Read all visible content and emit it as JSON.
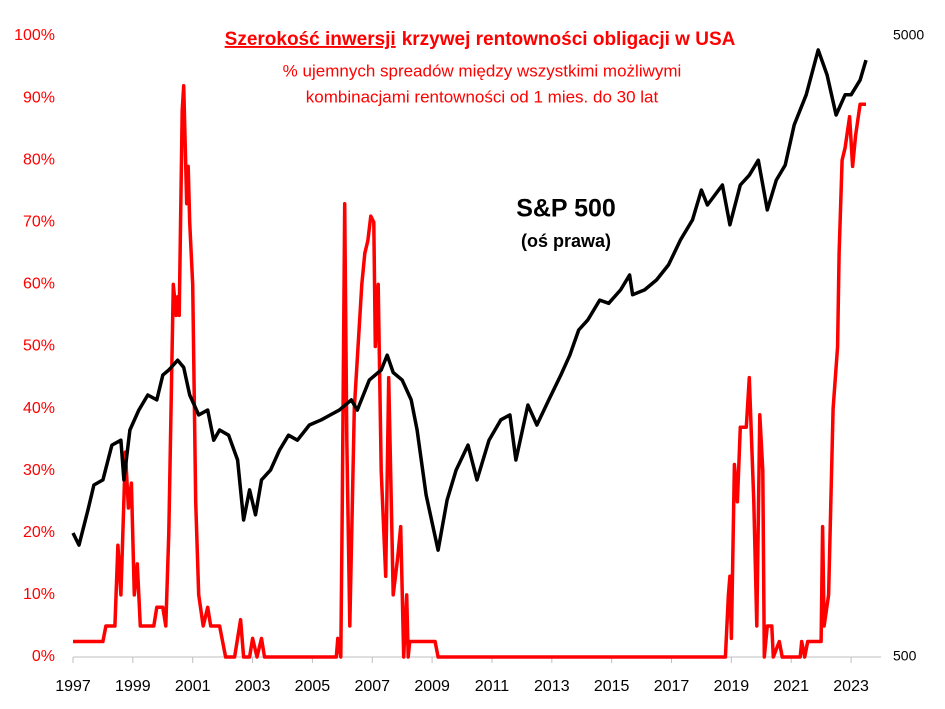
{
  "chart_data": {
    "type": "line",
    "title": {
      "underlined": "Szerokość inwersji",
      "rest": "krzywej rentowności obligacji w USA"
    },
    "subtitle": [
      "% ujemnych spreadów między wszystkimi możliwymi",
      "kombinacjami rentowności od 1 mies. do 30 lat"
    ],
    "annotation": [
      "S&P 500",
      "(oś prawa)"
    ],
    "xlim": [
      1997,
      2024
    ],
    "xticks": [
      1997,
      1999,
      2001,
      2003,
      2005,
      2007,
      2009,
      2011,
      2013,
      2015,
      2017,
      2019,
      2021,
      2023
    ],
    "ylim": [
      0,
      100
    ],
    "yticks": [
      {
        "value": 0,
        "label": "0%"
      },
      {
        "value": 10,
        "label": "10%"
      },
      {
        "value": 20,
        "label": "20%"
      },
      {
        "value": 30,
        "label": "30%"
      },
      {
        "value": 40,
        "label": "40%"
      },
      {
        "value": 50,
        "label": "50%"
      },
      {
        "value": 60,
        "label": "60%"
      },
      {
        "value": 70,
        "label": "70%"
      },
      {
        "value": 80,
        "label": "80%"
      },
      {
        "value": 90,
        "label": "90%"
      },
      {
        "value": 100,
        "label": "100%"
      }
    ],
    "y2lim": [
      500,
      5000
    ],
    "y2ticks": [
      500,
      5000
    ],
    "y2scale": "log",
    "series": [
      {
        "color": "#ff0000",
        "x": [
          1997.0,
          1998.0,
          1998.1,
          1998.4,
          1998.5,
          1998.6,
          1998.75,
          1998.85,
          1998.95,
          1999.05,
          1999.15,
          1999.25,
          1999.7,
          1999.8,
          2000.0,
          2000.1,
          2000.2,
          2000.35,
          2000.45,
          2000.5,
          2000.55,
          2000.65,
          2000.7,
          2000.8,
          2000.85,
          2000.9,
          2001.0,
          2001.1,
          2001.2,
          2001.35,
          2001.5,
          2001.6,
          2001.9,
          2002.1,
          2002.4,
          2002.5,
          2002.6,
          2002.7,
          2002.9,
          2003.0,
          2003.15,
          2003.3,
          2003.4,
          2005.8,
          2005.85,
          2005.95,
          2006.0,
          2006.08,
          2006.15,
          2006.25,
          2006.4,
          2006.55,
          2006.65,
          2006.75,
          2006.85,
          2006.95,
          2007.05,
          2007.1,
          2007.2,
          2007.3,
          2007.45,
          2007.55,
          2007.7,
          2007.85,
          2007.95,
          2008.05,
          2008.15,
          2008.2,
          2008.25,
          2009.1,
          2009.2,
          2018.8,
          2018.9,
          2018.95,
          2019.0,
          2019.1,
          2019.2,
          2019.3,
          2019.5,
          2019.6,
          2019.75,
          2019.85,
          2019.95,
          2020.05,
          2020.1,
          2020.2,
          2020.35,
          2020.4,
          2020.6,
          2020.7,
          2021.3,
          2021.35,
          2021.45,
          2021.55,
          2022.0,
          2022.05,
          2022.1,
          2022.25,
          2022.4,
          2022.55,
          2022.6,
          2022.7,
          2022.8,
          2022.95,
          2023.05,
          2023.15,
          2023.3,
          2023.5
        ],
        "values": [
          2.5,
          2.5,
          5,
          5,
          18,
          10,
          33,
          24,
          28,
          10,
          15,
          5,
          5,
          8,
          8,
          5,
          20,
          60,
          55,
          58,
          55,
          88,
          92,
          73,
          79,
          70,
          60,
          25,
          10,
          5,
          8,
          5,
          5,
          0,
          0,
          3,
          6,
          0,
          0,
          3,
          0,
          3,
          0,
          0,
          3,
          0,
          25,
          73,
          35,
          5,
          40,
          52,
          60,
          65,
          67,
          71,
          70,
          50,
          60,
          30,
          13,
          45,
          10,
          16,
          21,
          0,
          10,
          0,
          2.5,
          2.5,
          0,
          0,
          10,
          13,
          3,
          31,
          25,
          37,
          37,
          45,
          25,
          5,
          39,
          30,
          0,
          5,
          5,
          0,
          2.5,
          0,
          0,
          2.5,
          0,
          2.5,
          2.5,
          21,
          5,
          10,
          40,
          50,
          65,
          80,
          82,
          87,
          79,
          84,
          89,
          89
        ]
      },
      {
        "name": "S&P 500",
        "color": "#000000",
        "axis": "y2",
        "x": [
          1997.0,
          1997.2,
          1997.5,
          1997.7,
          1998.0,
          1998.3,
          1998.6,
          1998.7,
          1998.9,
          1999.2,
          1999.5,
          1999.8,
          2000.0,
          2000.2,
          2000.5,
          2000.7,
          2000.9,
          2001.2,
          2001.5,
          2001.7,
          2001.9,
          2002.2,
          2002.5,
          2002.7,
          2002.9,
          2003.1,
          2003.3,
          2003.6,
          2003.9,
          2004.2,
          2004.5,
          2004.9,
          2005.3,
          2005.6,
          2005.9,
          2006.3,
          2006.5,
          2006.9,
          2007.3,
          2007.5,
          2007.7,
          2008.0,
          2008.3,
          2008.5,
          2008.8,
          2009.2,
          2009.5,
          2009.8,
          2010.2,
          2010.5,
          2010.9,
          2011.3,
          2011.6,
          2011.8,
          2012.2,
          2012.5,
          2012.9,
          2013.3,
          2013.6,
          2013.9,
          2014.2,
          2014.6,
          2014.9,
          2015.3,
          2015.6,
          2015.7,
          2016.1,
          2016.5,
          2016.9,
          2017.3,
          2017.7,
          2018.0,
          2018.2,
          2018.7,
          2018.95,
          2019.3,
          2019.6,
          2019.9,
          2020.2,
          2020.5,
          2020.8,
          2021.1,
          2021.5,
          2021.9,
          2022.2,
          2022.5,
          2022.8,
          2023.0,
          2023.3,
          2023.5
        ],
        "values": [
          792,
          757,
          863,
          946,
          964,
          1097,
          1117,
          964,
          1160,
          1249,
          1321,
          1297,
          1422,
          1449,
          1503,
          1463,
          1321,
          1227,
          1249,
          1117,
          1160,
          1138,
          1038,
          831,
          929,
          847,
          964,
          1000,
          1077,
          1138,
          1117,
          1182,
          1205,
          1227,
          1249,
          1297,
          1249,
          1396,
          1449,
          1531,
          1436,
          1396,
          1297,
          1160,
          912,
          743,
          895,
          1000,
          1097,
          964,
          1117,
          1205,
          1227,
          1038,
          1273,
          1182,
          1297,
          1422,
          1531,
          1681,
          1744,
          1878,
          1856,
          1950,
          2061,
          1916,
          1950,
          2024,
          2140,
          2348,
          2528,
          2825,
          2672,
          2878,
          2483,
          2878,
          2984,
          3155,
          2624,
          2930,
          3098,
          3596,
          4020,
          4748,
          4327,
          3730,
          4020,
          4020,
          4245,
          4572
        ]
      }
    ]
  }
}
